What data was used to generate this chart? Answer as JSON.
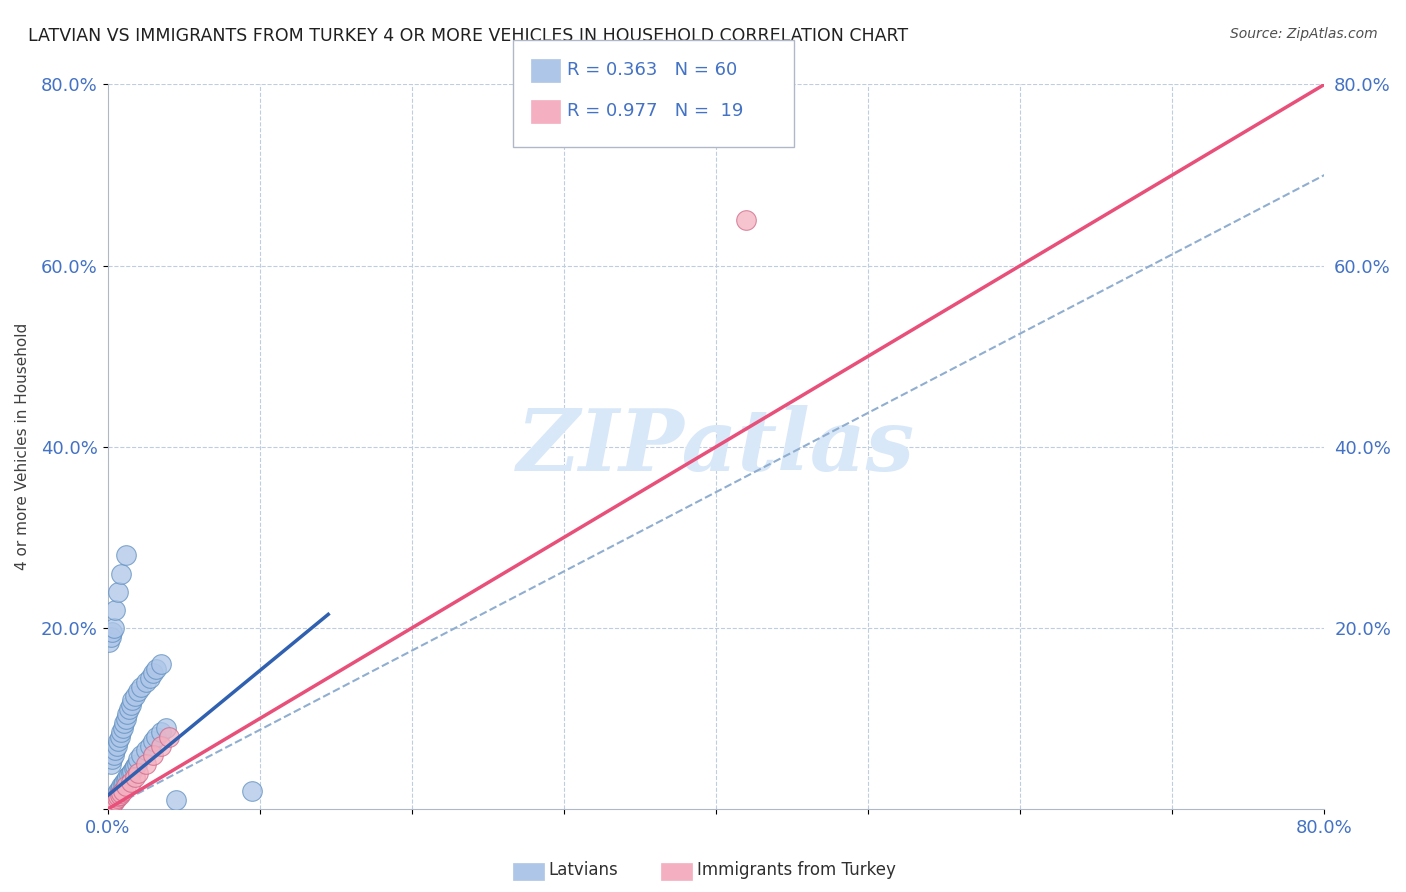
{
  "title": "LATVIAN VS IMMIGRANTS FROM TURKEY 4 OR MORE VEHICLES IN HOUSEHOLD CORRELATION CHART",
  "source": "Source: ZipAtlas.com",
  "ylabel": "4 or more Vehicles in Household",
  "xlim": [
    0.0,
    0.8
  ],
  "ylim": [
    0.0,
    0.8
  ],
  "xtick_positions": [
    0.0,
    0.1,
    0.2,
    0.3,
    0.4,
    0.5,
    0.6,
    0.7,
    0.8
  ],
  "xtick_labels": [
    "0.0%",
    "",
    "",
    "",
    "",
    "",
    "",
    "",
    "80.0%"
  ],
  "ytick_positions": [
    0.0,
    0.2,
    0.4,
    0.6,
    0.8
  ],
  "ytick_labels": [
    "",
    "20.0%",
    "40.0%",
    "60.0%",
    "80.0%"
  ],
  "latvian_color": "#aec6e8",
  "latvian_edge_color": "#6090c0",
  "turkey_color": "#f4b0c0",
  "turkey_edge_color": "#d06888",
  "latvian_line_color": "#3060b0",
  "turkey_line_color": "#e8507a",
  "dash_line_color": "#90aed0",
  "tick_color": "#4472c4",
  "watermark_color": "#d8e8f8",
  "background_color": "#ffffff",
  "grid_color": "#c0cce0",
  "latvian_scatter_x": [
    0.001,
    0.002,
    0.003,
    0.004,
    0.005,
    0.006,
    0.007,
    0.008,
    0.009,
    0.01,
    0.011,
    0.012,
    0.013,
    0.014,
    0.015,
    0.016,
    0.017,
    0.018,
    0.019,
    0.02,
    0.022,
    0.025,
    0.028,
    0.03,
    0.032,
    0.035,
    0.038,
    0.002,
    0.003,
    0.004,
    0.005,
    0.006,
    0.007,
    0.008,
    0.009,
    0.01,
    0.011,
    0.012,
    0.013,
    0.014,
    0.015,
    0.016,
    0.018,
    0.02,
    0.022,
    0.025,
    0.028,
    0.03,
    0.032,
    0.035,
    0.001,
    0.002,
    0.003,
    0.004,
    0.005,
    0.007,
    0.009,
    0.012,
    0.045,
    0.095
  ],
  "latvian_scatter_y": [
    0.005,
    0.008,
    0.01,
    0.012,
    0.015,
    0.018,
    0.02,
    0.022,
    0.025,
    0.028,
    0.03,
    0.032,
    0.035,
    0.038,
    0.04,
    0.042,
    0.045,
    0.048,
    0.05,
    0.055,
    0.06,
    0.065,
    0.07,
    0.075,
    0.08,
    0.085,
    0.09,
    0.05,
    0.055,
    0.06,
    0.065,
    0.07,
    0.075,
    0.08,
    0.085,
    0.09,
    0.095,
    0.1,
    0.105,
    0.11,
    0.115,
    0.12,
    0.125,
    0.13,
    0.135,
    0.14,
    0.145,
    0.15,
    0.155,
    0.16,
    0.185,
    0.19,
    0.195,
    0.2,
    0.22,
    0.24,
    0.26,
    0.28,
    0.01,
    0.02
  ],
  "turkey_scatter_x": [
    0.001,
    0.002,
    0.003,
    0.004,
    0.005,
    0.006,
    0.007,
    0.008,
    0.009,
    0.01,
    0.012,
    0.015,
    0.018,
    0.02,
    0.025,
    0.03,
    0.035,
    0.04,
    0.42
  ],
  "turkey_scatter_y": [
    0.002,
    0.004,
    0.006,
    0.008,
    0.01,
    0.012,
    0.014,
    0.016,
    0.018,
    0.02,
    0.025,
    0.03,
    0.035,
    0.04,
    0.05,
    0.06,
    0.07,
    0.08,
    0.65
  ],
  "latvian_trendline_x0": 0.0,
  "latvian_trendline_y0": 0.015,
  "latvian_trendline_x1": 0.145,
  "latvian_trendline_y1": 0.215,
  "turkey_trendline_x0": 0.0,
  "turkey_trendline_y0": 0.0,
  "turkey_trendline_x1": 0.8,
  "turkey_trendline_y1": 0.8,
  "dash_trendline_x0": 0.0,
  "dash_trendline_y0": 0.0,
  "dash_trendline_x1": 0.8,
  "dash_trendline_y1": 0.7
}
